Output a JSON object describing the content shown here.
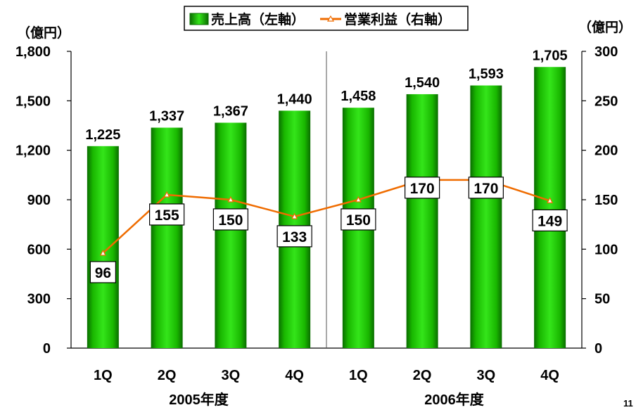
{
  "page_number": "11",
  "chart_data": {
    "type": "bar",
    "title": "",
    "left_axis_unit": "（億円）",
    "right_axis_unit": "（億円）",
    "categories": [
      "1Q",
      "2Q",
      "3Q",
      "4Q",
      "1Q",
      "2Q",
      "3Q",
      "4Q"
    ],
    "groups": [
      "2005年度",
      "2006年度"
    ],
    "series": [
      {
        "name": "売上高（左軸）",
        "type": "bar",
        "axis": "left",
        "values": [
          1225,
          1337,
          1367,
          1440,
          1458,
          1540,
          1593,
          1705
        ],
        "data_labels": [
          "1,225",
          "1,337",
          "1,367",
          "1,440",
          "1,458",
          "1,540",
          "1,593",
          "1,705"
        ],
        "color": "#19b700"
      },
      {
        "name": "営業利益（右軸）",
        "type": "line",
        "axis": "right",
        "values": [
          96,
          155,
          150,
          133,
          150,
          170,
          170,
          149
        ],
        "data_labels": [
          "96",
          "155",
          "150",
          "133",
          "150",
          "170",
          "170",
          "149"
        ],
        "color": "#ef6c00"
      }
    ],
    "y_left": {
      "min": 0,
      "max": 1800,
      "ticks": [
        0,
        300,
        600,
        900,
        1200,
        1500,
        1800
      ],
      "tick_labels": [
        "0",
        "300",
        "600",
        "900",
        "1,200",
        "1,500",
        "1,800"
      ]
    },
    "y_right": {
      "min": 0,
      "max": 300,
      "ticks": [
        0,
        50,
        100,
        150,
        200,
        250,
        300
      ],
      "tick_labels": [
        "0",
        "50",
        "100",
        "150",
        "200",
        "250",
        "300"
      ]
    },
    "grid": false,
    "legend": "top-center"
  }
}
